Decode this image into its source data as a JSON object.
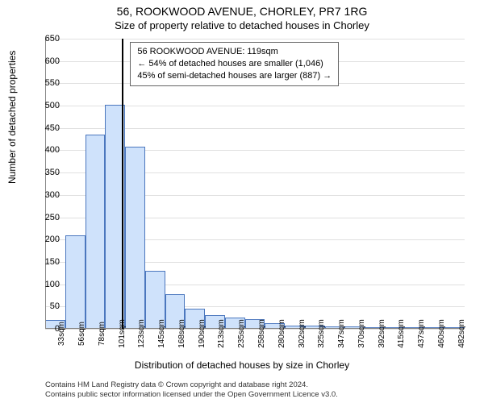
{
  "header": {
    "title": "56, ROOKWOOD AVENUE, CHORLEY, PR7 1RG",
    "subtitle": "Size of property relative to detached houses in Chorley"
  },
  "chart": {
    "type": "histogram",
    "ylabel": "Number of detached properties",
    "xlabel": "Distribution of detached houses by size in Chorley",
    "ylim": [
      0,
      650
    ],
    "ytick_step": 50,
    "xtick_labels": [
      "33sqm",
      "56sqm",
      "78sqm",
      "101sqm",
      "123sqm",
      "145sqm",
      "168sqm",
      "190sqm",
      "213sqm",
      "235sqm",
      "258sqm",
      "280sqm",
      "302sqm",
      "325sqm",
      "347sqm",
      "370sqm",
      "392sqm",
      "415sqm",
      "437sqm",
      "460sqm",
      "482sqm"
    ],
    "values": [
      20,
      210,
      435,
      502,
      408,
      130,
      78,
      45,
      30,
      25,
      22,
      12,
      8,
      8,
      6,
      5,
      4,
      3,
      3,
      2,
      2
    ],
    "bar_fill": "#cfe2fb",
    "bar_stroke": "#4b77be",
    "bar_width_ratio": 1.0,
    "grid_color": "#e0e0e0",
    "axis_color": "#888888",
    "background_color": "#ffffff",
    "marker": {
      "index": 3.85,
      "color": "#000000"
    },
    "label_fontsize": 12,
    "tick_fontsize": 11
  },
  "info_box": {
    "line1": "56 ROOKWOOD AVENUE: 119sqm",
    "line2": "← 54% of detached houses are smaller (1,046)",
    "line3": "45% of semi-detached houses are larger (887) →"
  },
  "footer": {
    "line1": "Contains HM Land Registry data © Crown copyright and database right 2024.",
    "line2": "Contains public sector information licensed under the Open Government Licence v3.0."
  }
}
